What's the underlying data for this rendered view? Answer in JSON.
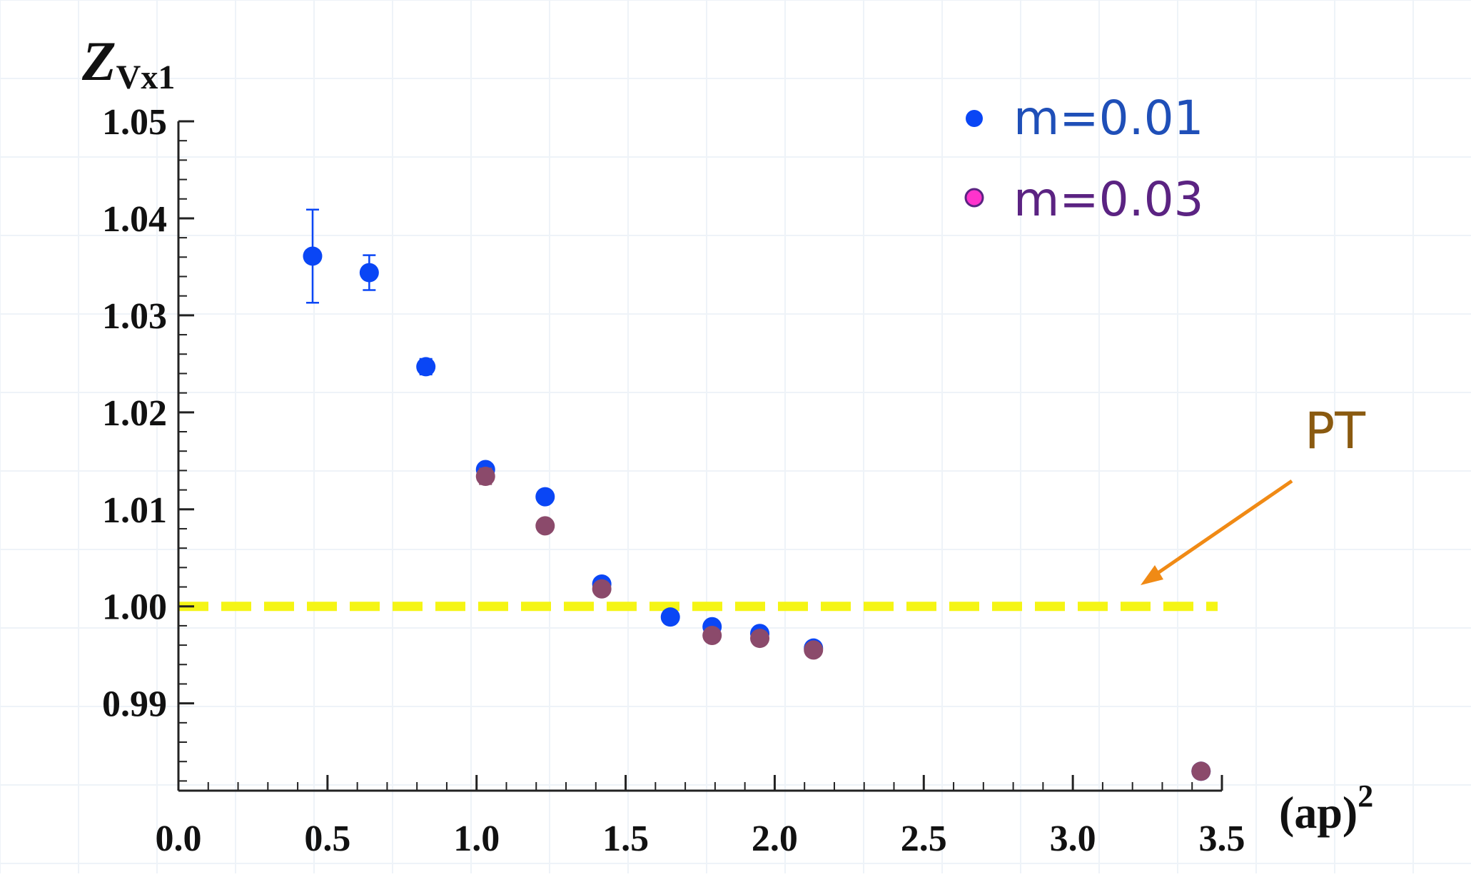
{
  "chart_data": {
    "type": "scatter",
    "ylabel": "Z",
    "ylabel_sub": "Vx1",
    "xlabel": "(ap)",
    "xlabel_sup": "2",
    "xlim": [
      0.0,
      3.5
    ],
    "ylim": [
      0.981,
      1.05
    ],
    "x_ticks": [
      0.0,
      0.5,
      1.0,
      1.5,
      2.0,
      2.5,
      3.0,
      3.5
    ],
    "x_tick_labels": [
      "0.0",
      "0.5",
      "1.0",
      "1.5",
      "2.0",
      "2.5",
      "3.0",
      "3.5"
    ],
    "y_ticks": [
      0.99,
      1.0,
      1.01,
      1.02,
      1.03,
      1.04,
      1.05
    ],
    "y_tick_labels": [
      "0.99",
      "1.00",
      "1.01",
      "1.02",
      "1.03",
      "1.04",
      "1.05"
    ],
    "legend_position": "top-right",
    "series": [
      {
        "name": "m=0.01",
        "color": "#0a46f5",
        "label_color": "#1f4fb8",
        "x": [
          0.45,
          0.64,
          0.83,
          1.03,
          1.23,
          1.42,
          1.65,
          1.79,
          1.95,
          2.13,
          3.43
        ],
        "y": [
          1.0361,
          1.0344,
          1.0247,
          1.0141,
          1.0113,
          1.0023,
          0.9989,
          0.9979,
          0.9972,
          0.9957,
          0.983
        ],
        "err": [
          0.0048,
          0.0018,
          0.0008,
          0.0005,
          0.0005,
          0.0004,
          0.0003,
          0.0003,
          0.0003,
          0.0003,
          0.0003
        ]
      },
      {
        "name": "m=0.03",
        "color": "#8b4a6b",
        "marker_color": "#ff33cc",
        "label_color": "#5b2382",
        "x": [
          1.03,
          1.23,
          1.42,
          1.79,
          1.95,
          2.13,
          3.43
        ],
        "y": [
          1.0134,
          1.0083,
          1.0018,
          0.997,
          0.9967,
          0.9955,
          0.983
        ],
        "err": [
          0.0008,
          0.0003,
          0.0003,
          0.0003,
          0.0003,
          0.0003,
          0.0003
        ]
      }
    ],
    "reference_line": {
      "y": 1.0,
      "x_end": 3.5,
      "color": "#f5f515",
      "style": "dashed"
    },
    "annotation": {
      "text": "PT",
      "text_color": "#8a5a10",
      "arrow_color": "#f08a15"
    }
  }
}
